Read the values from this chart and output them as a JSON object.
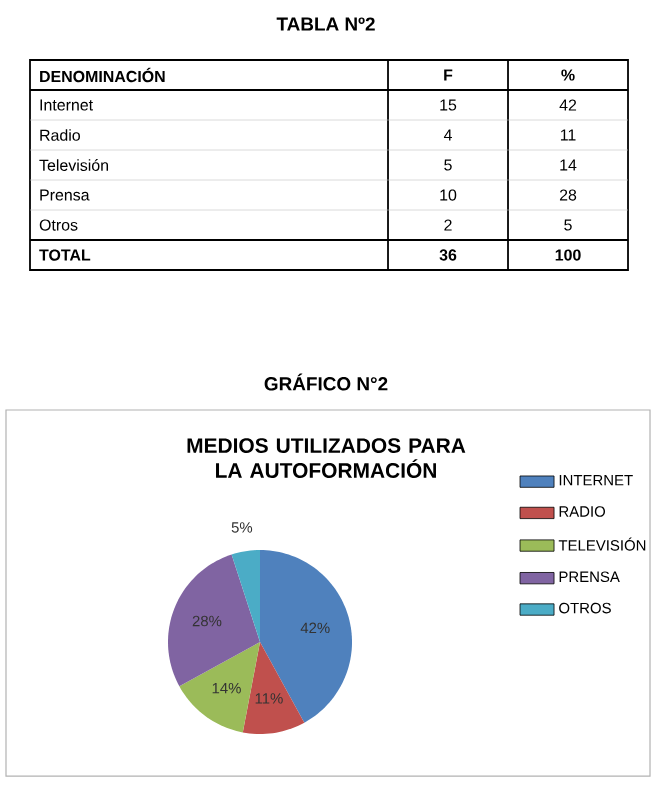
{
  "chart_data": [
    {
      "type": "other",
      "title": "TABLA Nº2",
      "annotations": [
        "DENOMINACIÓN"
      ],
      "categories": [
        "Internet",
        "Radio",
        "Televisión",
        "Prensa",
        "Otros",
        "TOTAL"
      ],
      "series": [
        {
          "name": "F",
          "values": [
            15,
            4,
            5,
            10,
            2,
            36
          ]
        },
        {
          "name": "%",
          "values": [
            42,
            11,
            14,
            28,
            5,
            100
          ]
        }
      ],
      "data_labels": true
    },
    {
      "type": "pie",
      "title": "GRÁFICO N°2",
      "subtitle": "MEDIOS UTILIZADOS PARA LA AUTOFORMACIÓN",
      "categories": [
        "INTERNET",
        "RADIO",
        "TELEVISIÓN",
        "PRENSA",
        "OTROS"
      ],
      "values": [
        42,
        11,
        14,
        28,
        5
      ],
      "colors": [
        "#4f81bd",
        "#c0504d",
        "#9bbb59",
        "#8064a2",
        "#4bacc6"
      ],
      "value_labels": [
        "42%",
        "11%",
        "14%",
        "28%",
        "5%"
      ],
      "legend": "right"
    }
  ]
}
